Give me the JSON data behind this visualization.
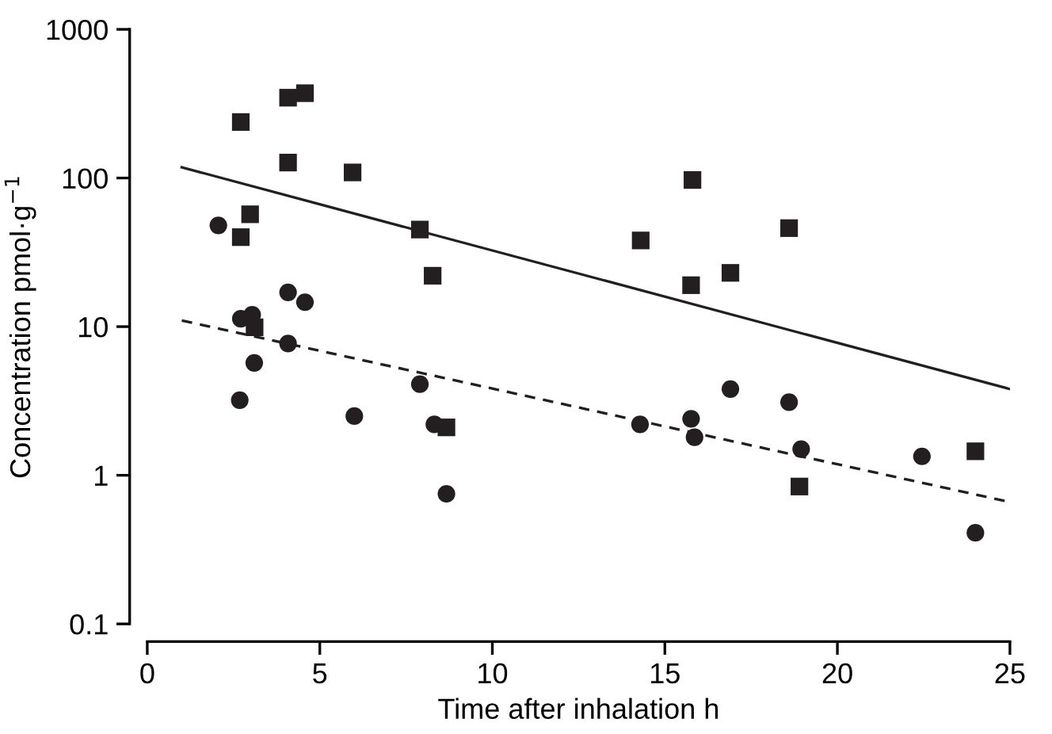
{
  "chart_data": {
    "type": "scatter",
    "xlabel": "Time after inhalation h",
    "ylabel": "Concentration pmol·g$^{−1}$",
    "log": "y",
    "xlim": [
      0,
      25
    ],
    "ylim": [
      0.1,
      1000
    ],
    "xticks": [
      0,
      5,
      10,
      15,
      20,
      25
    ],
    "yticks": [
      0.1,
      1,
      10,
      100,
      1000
    ],
    "grid": false,
    "series": [
      {
        "marker": "square",
        "color": "#231f20",
        "x": [
          2.71,
          4.08,
          4.57,
          4.08,
          5.95,
          2.98,
          2.71,
          7.9,
          8.27,
          3.11,
          8.67,
          14.3,
          15.8,
          15.76,
          16.9,
          18.6,
          18.9,
          24.0
        ],
        "values": [
          238,
          347,
          372,
          127,
          109,
          57,
          40,
          45,
          22,
          9.9,
          2.1,
          38,
          97,
          19,
          23,
          46,
          0.84,
          1.45
        ]
      },
      {
        "marker": "circle",
        "color": "#231f20",
        "x": [
          2.06,
          3.04,
          2.71,
          4.08,
          4.57,
          4.08,
          3.1,
          2.68,
          6.0,
          7.9,
          8.32,
          8.67,
          14.28,
          15.76,
          15.86,
          16.9,
          18.6,
          18.95,
          22.45,
          24.0
        ],
        "values": [
          48,
          12,
          11.3,
          17,
          14.6,
          7.7,
          5.7,
          3.2,
          2.5,
          4.1,
          2.2,
          0.75,
          2.2,
          2.4,
          1.8,
          3.8,
          3.1,
          1.5,
          1.34,
          0.41
        ]
      },
      {
        "type": "line",
        "marker": "none",
        "line_style": "solid",
        "color": "#231f20",
        "x": [
          1,
          25
        ],
        "values": [
          118,
          3.8
        ]
      },
      {
        "type": "line",
        "marker": "none",
        "line_style": "dashed",
        "color": "#231f20",
        "x": [
          1,
          25
        ],
        "values": [
          11,
          0.66
        ]
      }
    ]
  }
}
